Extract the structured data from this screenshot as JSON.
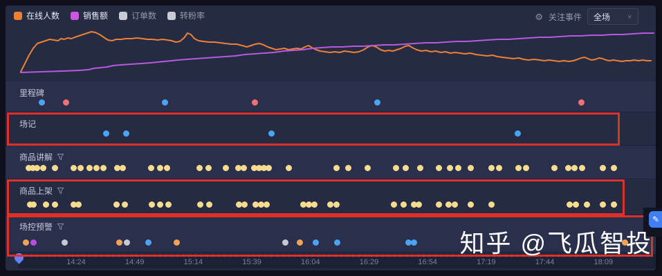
{
  "legend": {
    "items": [
      {
        "key": "online-users",
        "label": "在线人数",
        "color": "#f07f2e",
        "text_color": "#e8eaf2"
      },
      {
        "key": "sales",
        "label": "销售额",
        "color": "#cf54e0",
        "text_color": "#e8eaf2"
      },
      {
        "key": "orders",
        "label": "订单数",
        "color": "#c9ccd6",
        "text_color": "#9298ac"
      },
      {
        "key": "fan-rate",
        "label": "转粉率",
        "color": "#c9ccd6",
        "text_color": "#9298ac"
      }
    ]
  },
  "toolbar": {
    "gear_icon": "⚙",
    "focus_event_label": "关注事件",
    "scope_value": "全场",
    "chevron": "∨"
  },
  "watermark": "知乎 @飞瓜智投",
  "highlight_color": "#e0302d",
  "dot_colors": {
    "yellow": "#f8dc8e",
    "blue": "#4ba4f2",
    "red": "#ef7374",
    "orange": "#f2a254",
    "purple": "#b94fe0",
    "gray": "#c6c8d2"
  },
  "chart_data": {
    "type": "line",
    "note": "no numeric axes shown; points are screen-space px of the trend curves, y down",
    "series": [
      {
        "key": "online-users",
        "name": "在线人数",
        "color": "#ee8133",
        "points": [
          [
            30,
            104
          ],
          [
            36,
            92
          ],
          [
            42,
            80
          ],
          [
            48,
            70
          ],
          [
            54,
            63
          ],
          [
            60,
            61
          ],
          [
            66,
            59
          ],
          [
            72,
            57
          ],
          [
            78,
            58
          ],
          [
            84,
            59
          ],
          [
            88,
            56
          ],
          [
            93,
            57
          ],
          [
            98,
            55
          ],
          [
            103,
            56
          ],
          [
            108,
            54
          ],
          [
            114,
            52
          ],
          [
            120,
            50
          ],
          [
            126,
            48
          ],
          [
            132,
            46
          ],
          [
            138,
            47
          ],
          [
            144,
            50
          ],
          [
            150,
            54
          ],
          [
            156,
            58
          ],
          [
            162,
            59
          ],
          [
            168,
            57
          ],
          [
            175,
            57
          ],
          [
            182,
            56
          ],
          [
            190,
            56
          ],
          [
            198,
            55
          ],
          [
            206,
            56
          ],
          [
            213,
            57
          ],
          [
            220,
            57
          ],
          [
            228,
            58
          ],
          [
            235,
            57
          ],
          [
            242,
            58
          ],
          [
            248,
            59
          ],
          [
            254,
            61
          ],
          [
            260,
            60
          ],
          [
            266,
            55
          ],
          [
            271,
            48
          ],
          [
            276,
            50
          ],
          [
            281,
            56
          ],
          [
            287,
            59
          ],
          [
            294,
            60
          ],
          [
            302,
            61
          ],
          [
            310,
            61
          ],
          [
            318,
            62
          ],
          [
            326,
            63
          ],
          [
            334,
            64
          ],
          [
            342,
            64
          ],
          [
            350,
            66
          ],
          [
            357,
            68
          ],
          [
            363,
            66
          ],
          [
            369,
            64
          ],
          [
            375,
            63
          ],
          [
            381,
            65
          ],
          [
            387,
            68
          ],
          [
            393,
            70
          ],
          [
            399,
            72
          ],
          [
            405,
            71
          ],
          [
            411,
            70
          ],
          [
            417,
            72
          ],
          [
            423,
            71
          ],
          [
            429,
            70
          ],
          [
            435,
            71
          ],
          [
            441,
            68
          ],
          [
            446,
            66
          ],
          [
            451,
            69
          ],
          [
            457,
            72
          ],
          [
            463,
            74
          ],
          [
            470,
            75
          ],
          [
            477,
            76
          ],
          [
            484,
            75
          ],
          [
            491,
            76
          ],
          [
            498,
            74
          ],
          [
            505,
            75
          ],
          [
            512,
            76
          ],
          [
            519,
            75
          ],
          [
            526,
            72
          ],
          [
            532,
            68
          ],
          [
            538,
            66
          ],
          [
            544,
            68
          ],
          [
            550,
            72
          ],
          [
            556,
            74
          ],
          [
            562,
            73
          ],
          [
            568,
            74
          ],
          [
            574,
            72
          ],
          [
            580,
            70
          ],
          [
            586,
            67
          ],
          [
            591,
            66
          ],
          [
            596,
            69
          ],
          [
            602,
            72
          ],
          [
            609,
            74
          ],
          [
            616,
            73
          ],
          [
            623,
            75
          ],
          [
            630,
            74
          ],
          [
            637,
            76
          ],
          [
            644,
            75
          ],
          [
            651,
            77
          ],
          [
            658,
            76
          ],
          [
            665,
            77
          ],
          [
            672,
            78
          ],
          [
            680,
            77
          ],
          [
            688,
            79
          ],
          [
            696,
            80
          ],
          [
            704,
            81
          ],
          [
            712,
            80
          ],
          [
            719,
            82
          ],
          [
            726,
            83
          ],
          [
            734,
            84
          ],
          [
            742,
            85
          ],
          [
            750,
            84
          ],
          [
            757,
            86
          ],
          [
            764,
            87
          ],
          [
            772,
            86
          ],
          [
            780,
            87
          ],
          [
            787,
            88
          ],
          [
            794,
            87
          ],
          [
            801,
            88
          ],
          [
            808,
            89
          ],
          [
            815,
            88
          ],
          [
            822,
            89
          ],
          [
            829,
            88
          ],
          [
            835,
            86
          ],
          [
            840,
            84
          ],
          [
            845,
            83
          ],
          [
            850,
            85
          ],
          [
            855,
            87
          ],
          [
            861,
            86
          ],
          [
            866,
            84
          ],
          [
            871,
            85
          ],
          [
            876,
            87
          ],
          [
            881,
            88
          ],
          [
            887,
            87
          ],
          [
            893,
            88
          ],
          [
            899,
            89
          ],
          [
            905,
            88
          ],
          [
            911,
            88
          ],
          [
            917,
            87
          ],
          [
            923,
            88
          ],
          [
            929,
            87
          ],
          [
            935,
            88
          ],
          [
            941,
            88
          ]
        ]
      },
      {
        "key": "sales",
        "name": "销售额",
        "color": "#b75ae0",
        "points": [
          [
            30,
            105
          ],
          [
            60,
            104
          ],
          [
            90,
            103
          ],
          [
            115,
            102
          ],
          [
            128,
            101
          ],
          [
            136,
            99
          ],
          [
            146,
            98
          ],
          [
            155,
            97
          ],
          [
            164,
            95
          ],
          [
            175,
            94
          ],
          [
            190,
            93
          ],
          [
            205,
            92
          ],
          [
            218,
            91
          ],
          [
            228,
            90
          ],
          [
            238,
            89
          ],
          [
            248,
            88
          ],
          [
            258,
            87
          ],
          [
            270,
            86
          ],
          [
            284,
            85
          ],
          [
            298,
            84
          ],
          [
            312,
            83
          ],
          [
            326,
            82
          ],
          [
            340,
            81
          ],
          [
            354,
            79
          ],
          [
            368,
            78
          ],
          [
            382,
            77
          ],
          [
            396,
            76
          ],
          [
            410,
            74
          ],
          [
            424,
            73
          ],
          [
            438,
            72
          ],
          [
            452,
            70
          ],
          [
            466,
            69
          ],
          [
            480,
            68
          ],
          [
            495,
            68
          ],
          [
            510,
            67
          ],
          [
            525,
            67
          ],
          [
            540,
            66
          ],
          [
            555,
            65
          ],
          [
            570,
            65
          ],
          [
            585,
            64
          ],
          [
            600,
            63
          ],
          [
            615,
            62
          ],
          [
            630,
            62
          ],
          [
            645,
            61
          ],
          [
            660,
            60
          ],
          [
            675,
            60
          ],
          [
            690,
            59
          ],
          [
            705,
            58
          ],
          [
            720,
            57
          ],
          [
            735,
            57
          ],
          [
            750,
            56
          ],
          [
            765,
            55
          ],
          [
            780,
            54
          ],
          [
            795,
            54
          ],
          [
            810,
            53
          ],
          [
            825,
            52
          ],
          [
            840,
            52
          ],
          [
            855,
            51
          ],
          [
            870,
            51
          ],
          [
            885,
            50
          ],
          [
            900,
            50
          ],
          [
            915,
            49
          ],
          [
            930,
            48
          ],
          [
            945,
            48
          ]
        ]
      }
    ]
  },
  "rows": [
    {
      "key": "milestone",
      "label": "里程碑",
      "filter": false,
      "highlighted": false,
      "dots": [
        [
          60,
          "blue"
        ],
        [
          95,
          "red"
        ],
        [
          238,
          "blue"
        ],
        [
          368,
          "red"
        ],
        [
          545,
          "blue"
        ],
        [
          840,
          "red"
        ]
      ]
    },
    {
      "key": "scene-log",
      "label": "场记",
      "filter": false,
      "highlighted": true,
      "dots": [
        [
          153,
          "blue"
        ],
        [
          182,
          "blue"
        ],
        [
          392,
          "blue"
        ],
        [
          748,
          "blue"
        ]
      ]
    },
    {
      "key": "product-explain",
      "label": "商品讲解",
      "filter": true,
      "highlighted": false,
      "dots": [
        [
          41,
          "yellow"
        ],
        [
          47,
          "yellow"
        ],
        [
          53,
          "yellow"
        ],
        [
          62,
          "yellow"
        ],
        [
          79,
          "yellow"
        ],
        [
          106,
          "yellow"
        ],
        [
          116,
          "yellow"
        ],
        [
          129,
          "yellow"
        ],
        [
          139,
          "yellow"
        ],
        [
          149,
          "yellow"
        ],
        [
          169,
          "yellow"
        ],
        [
          177,
          "yellow"
        ],
        [
          218,
          "yellow"
        ],
        [
          231,
          "yellow"
        ],
        [
          241,
          "yellow"
        ],
        [
          288,
          "yellow"
        ],
        [
          301,
          "yellow"
        ],
        [
          326,
          "yellow"
        ],
        [
          344,
          "yellow"
        ],
        [
          352,
          "yellow"
        ],
        [
          367,
          "yellow"
        ],
        [
          374,
          "yellow"
        ],
        [
          381,
          "yellow"
        ],
        [
          388,
          "yellow"
        ],
        [
          417,
          "yellow"
        ],
        [
          486,
          "yellow"
        ],
        [
          503,
          "yellow"
        ],
        [
          531,
          "yellow"
        ],
        [
          572,
          "yellow"
        ],
        [
          586,
          "yellow"
        ],
        [
          607,
          "yellow"
        ],
        [
          634,
          "yellow"
        ],
        [
          650,
          "yellow"
        ],
        [
          662,
          "yellow"
        ],
        [
          680,
          "yellow"
        ],
        [
          710,
          "yellow"
        ],
        [
          721,
          "yellow"
        ],
        [
          749,
          "yellow"
        ],
        [
          760,
          "yellow"
        ],
        [
          801,
          "yellow"
        ],
        [
          821,
          "yellow"
        ],
        [
          830,
          "yellow"
        ],
        [
          841,
          "yellow"
        ],
        [
          871,
          "yellow"
        ],
        [
          887,
          "yellow"
        ]
      ]
    },
    {
      "key": "product-listing",
      "label": "商品上架",
      "filter": true,
      "highlighted": true,
      "dots": [
        [
          43,
          "yellow"
        ],
        [
          48,
          "yellow"
        ],
        [
          66,
          "yellow"
        ],
        [
          79,
          "yellow"
        ],
        [
          106,
          "yellow"
        ],
        [
          113,
          "yellow"
        ],
        [
          168,
          "yellow"
        ],
        [
          180,
          "yellow"
        ],
        [
          219,
          "yellow"
        ],
        [
          231,
          "yellow"
        ],
        [
          243,
          "yellow"
        ],
        [
          289,
          "yellow"
        ],
        [
          302,
          "yellow"
        ],
        [
          345,
          "yellow"
        ],
        [
          353,
          "yellow"
        ],
        [
          369,
          "yellow"
        ],
        [
          377,
          "yellow"
        ],
        [
          385,
          "yellow"
        ],
        [
          438,
          "yellow"
        ],
        [
          446,
          "yellow"
        ],
        [
          454,
          "yellow"
        ],
        [
          477,
          "yellow"
        ],
        [
          486,
          "yellow"
        ],
        [
          569,
          "yellow"
        ],
        [
          583,
          "yellow"
        ],
        [
          598,
          "yellow"
        ],
        [
          605,
          "yellow"
        ],
        [
          634,
          "yellow"
        ],
        [
          648,
          "yellow"
        ],
        [
          657,
          "yellow"
        ],
        [
          680,
          "yellow"
        ],
        [
          710,
          "yellow"
        ],
        [
          823,
          "yellow"
        ],
        [
          832,
          "yellow"
        ],
        [
          848,
          "yellow"
        ],
        [
          871,
          "yellow"
        ],
        [
          887,
          "yellow"
        ]
      ]
    },
    {
      "key": "control-alert",
      "label": "场控预警",
      "filter": true,
      "highlighted": true,
      "dots": [
        [
          37,
          "orange"
        ],
        [
          48,
          "purple"
        ],
        [
          93,
          "gray"
        ],
        [
          172,
          "orange"
        ],
        [
          183,
          "gray"
        ],
        [
          214,
          "blue"
        ],
        [
          255,
          "orange"
        ],
        [
          412,
          "gray"
        ],
        [
          433,
          "orange"
        ],
        [
          456,
          "blue"
        ],
        [
          487,
          "blue"
        ],
        [
          590,
          "blue"
        ],
        [
          598,
          "blue"
        ],
        [
          903,
          "orange"
        ]
      ]
    }
  ],
  "axis": {
    "times": [
      "14:24",
      "14:49",
      "15:14",
      "15:39",
      "16:04",
      "16:29",
      "16:54",
      "17:19",
      "17:44",
      "18:09"
    ],
    "first_x": 110,
    "step": 84.7,
    "marker_x": 27
  }
}
